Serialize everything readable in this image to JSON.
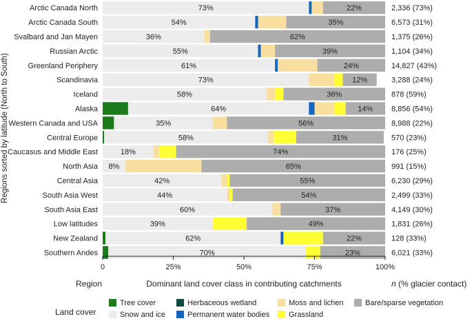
{
  "chart_data": {
    "type": "bar",
    "stacked": true,
    "orientation": "horizontal",
    "ylabel": "Regions sorted by latitude (North to South)",
    "xlabel": "Dominant land cover class in contributing catchments",
    "region_header": "Region",
    "right_header": "n (% glacier contact)",
    "xlim": [
      0,
      100
    ],
    "xticks": [
      "0",
      "25%",
      "50%",
      "75%",
      "100%"
    ],
    "categories": [
      "Arctic Canada North",
      "Arctic Canada South",
      "Svalbard and Jan Mayen",
      "Russian Arctic",
      "Greenland Periphery",
      "Scandinavia",
      "Iceland",
      "Alaska",
      "Western Canada and USA",
      "Central Europe",
      "Caucasus and Middle East",
      "North Asia",
      "Central Asia",
      "South Asia West",
      "South Asia East",
      "Low latitudes",
      "New Zealand",
      "Southern Andes"
    ],
    "n_labels": [
      "2,336 (73%)",
      "6,573 (31%)",
      "1,375 (26%)",
      "1,104 (34%)",
      "14,827 (43%)",
      "3,288 (24%)",
      "878 (59%)",
      "8,856 (54%)",
      "8,988 (22%)",
      "570 (23%)",
      "176 (25%)",
      "991 (15%)",
      "6,230 (29%)",
      "2,499 (33%)",
      "4,149 (30%)",
      "1,831 (26%)",
      "128 (33%)",
      "6,021 (33%)"
    ],
    "series": [
      {
        "name": "Tree cover",
        "color": "#1b7a1b",
        "values": [
          0,
          0,
          0,
          0,
          0,
          0,
          0,
          9,
          4,
          0.5,
          0,
          0,
          0,
          0,
          0,
          0,
          1,
          2
        ]
      },
      {
        "name": "Herbaceous wetland",
        "color": "#0f4a3e",
        "values": [
          0,
          0,
          0,
          0,
          0,
          0,
          0,
          0,
          0,
          0,
          0,
          0,
          0,
          0,
          0,
          0,
          0,
          0
        ]
      },
      {
        "name": "Snow and ice",
        "color": "#ececec",
        "values": [
          73,
          54,
          36,
          55,
          61,
          73,
          58,
          64,
          35,
          58,
          18,
          8,
          42,
          44,
          60,
          39,
          62,
          70
        ]
      },
      {
        "name": "Permanent water bodies",
        "color": "#1565c0",
        "values": [
          1,
          1,
          0,
          1,
          1,
          0,
          0,
          2,
          0,
          0,
          0,
          0,
          0,
          0,
          0,
          0,
          1,
          0
        ]
      },
      {
        "name": "Moss and lichen",
        "color": "#f8dfa0",
        "values": [
          4,
          10,
          2,
          5,
          14,
          9,
          3,
          7,
          5,
          2,
          2,
          27,
          2,
          1,
          3,
          0,
          0,
          0
        ]
      },
      {
        "name": "Grassland",
        "color": "#ffff33",
        "values": [
          0,
          0,
          0,
          0,
          0,
          3,
          3,
          4,
          0,
          8,
          6,
          0,
          1,
          1,
          0,
          12,
          14,
          5
        ]
      },
      {
        "name": "Bare/sparse vegetation",
        "color": "#adadad",
        "values": [
          22,
          35,
          62,
          39,
          24,
          12,
          36,
          14,
          56,
          31,
          74,
          65,
          55,
          54,
          37,
          49,
          22,
          23
        ]
      }
    ],
    "bar_labels": [
      [
        {
          "series": "Snow and ice",
          "text": "73%"
        },
        {
          "series": "Bare/sparse vegetation",
          "text": "22%"
        }
      ],
      [
        {
          "series": "Snow and ice",
          "text": "54%"
        },
        {
          "series": "Bare/sparse vegetation",
          "text": "35%"
        }
      ],
      [
        {
          "series": "Snow and ice",
          "text": "36%"
        },
        {
          "series": "Bare/sparse vegetation",
          "text": "62%"
        }
      ],
      [
        {
          "series": "Snow and ice",
          "text": "55%"
        },
        {
          "series": "Bare/sparse vegetation",
          "text": "39%"
        }
      ],
      [
        {
          "series": "Snow and ice",
          "text": "61%"
        },
        {
          "series": "Bare/sparse vegetation",
          "text": "24%"
        }
      ],
      [
        {
          "series": "Snow and ice",
          "text": "73%"
        },
        {
          "series": "Bare/sparse vegetation",
          "text": "12%"
        }
      ],
      [
        {
          "series": "Snow and ice",
          "text": "58%"
        },
        {
          "series": "Bare/sparse vegetation",
          "text": "36%"
        }
      ],
      [
        {
          "series": "Snow and ice",
          "text": "64%"
        },
        {
          "series": "Bare/sparse vegetation",
          "text": "14%"
        }
      ],
      [
        {
          "series": "Snow and ice",
          "text": "35%"
        },
        {
          "series": "Bare/sparse vegetation",
          "text": "56%"
        }
      ],
      [
        {
          "series": "Snow and ice",
          "text": "58%"
        },
        {
          "series": "Bare/sparse vegetation",
          "text": "31%"
        }
      ],
      [
        {
          "series": "Snow and ice",
          "text": "18%"
        },
        {
          "series": "Bare/sparse vegetation",
          "text": "74%"
        }
      ],
      [
        {
          "series": "Snow and ice",
          "text": "8%"
        },
        {
          "series": "Bare/sparse vegetation",
          "text": "65%"
        }
      ],
      [
        {
          "series": "Snow and ice",
          "text": "42%"
        },
        {
          "series": "Bare/sparse vegetation",
          "text": "55%"
        }
      ],
      [
        {
          "series": "Snow and ice",
          "text": "44%"
        },
        {
          "series": "Bare/sparse vegetation",
          "text": "54%"
        }
      ],
      [
        {
          "series": "Snow and ice",
          "text": "60%"
        },
        {
          "series": "Bare/sparse vegetation",
          "text": "37%"
        }
      ],
      [
        {
          "series": "Snow and ice",
          "text": "39%"
        },
        {
          "series": "Bare/sparse vegetation",
          "text": "49%"
        }
      ],
      [
        {
          "series": "Snow and ice",
          "text": "62%"
        },
        {
          "series": "Bare/sparse vegetation",
          "text": "22%"
        }
      ],
      [
        {
          "series": "Snow and ice",
          "text": "70%"
        },
        {
          "series": "Bare/sparse vegetation",
          "text": "23%"
        }
      ]
    ],
    "legend": {
      "title": "Land cover",
      "placement": "bottom",
      "rows": [
        [
          "Tree cover",
          "Herbaceous wetland",
          "Moss and lichen",
          "Bare/sparse vegetation"
        ],
        [
          "Snow and ice",
          "Permanent water bodies",
          "Grassland"
        ]
      ]
    }
  }
}
